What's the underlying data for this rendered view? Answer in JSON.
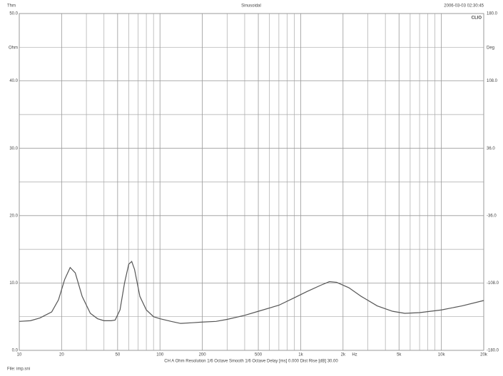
{
  "chart_data": {
    "type": "line",
    "title": "Sinusoidal",
    "top_left": "Thm",
    "timestamp": "2006-03-03 02:30:45",
    "brand": "CLIO",
    "y_unit": "Ohm",
    "y2_unit": "Deg",
    "x_unit": "Hz",
    "settings_line": "CH A   Ohm   Resolution 1/6 Octave   Smooth 1/6 Octave   Delay [ms] 0.000   Dist Rise [dB] 30.00",
    "file_label": "File: imp.sni",
    "log_x": true,
    "grid": true,
    "xlim": [
      10,
      20000
    ],
    "xticks": [
      10,
      20,
      50,
      100,
      200,
      500,
      {
        "value": 1000,
        "label": "1k"
      },
      {
        "value": 2000,
        "label": "2k"
      },
      {
        "value": 5000,
        "label": "5k"
      },
      {
        "value": 10000,
        "label": "10k"
      },
      {
        "value": 20000,
        "label": "20k"
      }
    ],
    "x_minor_grid": [
      30,
      40,
      60,
      70,
      80,
      90,
      300,
      400,
      600,
      700,
      800,
      900,
      3000,
      4000,
      6000,
      7000,
      8000,
      9000
    ],
    "ylim": [
      0,
      50
    ],
    "yticks": [
      {
        "value": 0,
        "label": "0.0"
      },
      {
        "value": 10,
        "label": "10.0"
      },
      {
        "value": 20,
        "label": "20.0"
      },
      {
        "value": 30,
        "label": "30.0"
      },
      {
        "value": 40,
        "label": "40.0"
      },
      {
        "value": 50,
        "label": "50.0"
      }
    ],
    "y_minor_grid": [
      5,
      15,
      25,
      35,
      45
    ],
    "y2lim": [
      -180,
      180
    ],
    "y2ticks": [
      {
        "value": -180,
        "label": "-180.0"
      },
      {
        "value": -108,
        "label": "-108.0"
      },
      {
        "value": -36,
        "label": "-36.0"
      },
      {
        "value": 36,
        "label": "36.0"
      },
      {
        "value": 108,
        "label": "108.0"
      },
      {
        "value": 180,
        "label": "180.0"
      }
    ],
    "x": [
      10,
      12,
      14,
      17,
      19,
      21,
      23,
      25,
      28,
      32,
      36,
      40,
      45,
      48,
      52,
      56,
      60,
      63,
      66,
      72,
      80,
      90,
      100,
      120,
      140,
      170,
      200,
      250,
      300,
      400,
      500,
      700,
      900,
      1100,
      1400,
      1600,
      1800,
      2200,
      2700,
      3500,
      4500,
      5500,
      7000,
      10000,
      14000,
      20000
    ],
    "series": [
      {
        "color": "#555555",
        "values": [
          4.3,
          4.4,
          4.8,
          5.7,
          7.5,
          10.5,
          12.3,
          11.5,
          8,
          5.5,
          4.7,
          4.4,
          4.4,
          4.5,
          6,
          10,
          12.8,
          13.2,
          12,
          8,
          6,
          5,
          4.7,
          4.3,
          4,
          4.1,
          4.2,
          4.3,
          4.6,
          5.2,
          5.8,
          6.7,
          7.8,
          8.7,
          9.7,
          10.2,
          10.1,
          9.3,
          8,
          6.6,
          5.8,
          5.5,
          5.6,
          6,
          6.6,
          7.4
        ]
      }
    ]
  }
}
